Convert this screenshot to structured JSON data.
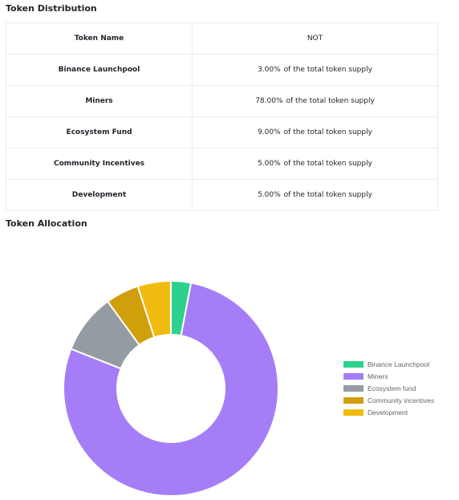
{
  "distribution": {
    "title": "Token Distribution",
    "header": {
      "name": "Token Name",
      "value": "NOT"
    },
    "suffix": "of the total token supply",
    "rows": [
      {
        "name": "Binance Launchpool",
        "pct": "3.00%"
      },
      {
        "name": "Miners",
        "pct": "78.00%"
      },
      {
        "name": "Ecosystem Fund",
        "pct": "9.00%"
      },
      {
        "name": "Community Incentives",
        "pct": "5.00%"
      },
      {
        "name": "Development",
        "pct": "5.00%"
      }
    ]
  },
  "allocation": {
    "title": "Token Allocation"
  },
  "chart_data": {
    "type": "pie",
    "donut": true,
    "legend_position": "right",
    "labels": [
      "Binance Launchpool",
      "Miners",
      "Ecosystem fund",
      "Community incentives",
      "Development"
    ],
    "values": [
      3,
      78,
      9,
      5,
      5
    ],
    "colors": [
      "#2ed08e",
      "#a57ef7",
      "#959ba3",
      "#d19e0c",
      "#f0bb0e"
    ]
  }
}
